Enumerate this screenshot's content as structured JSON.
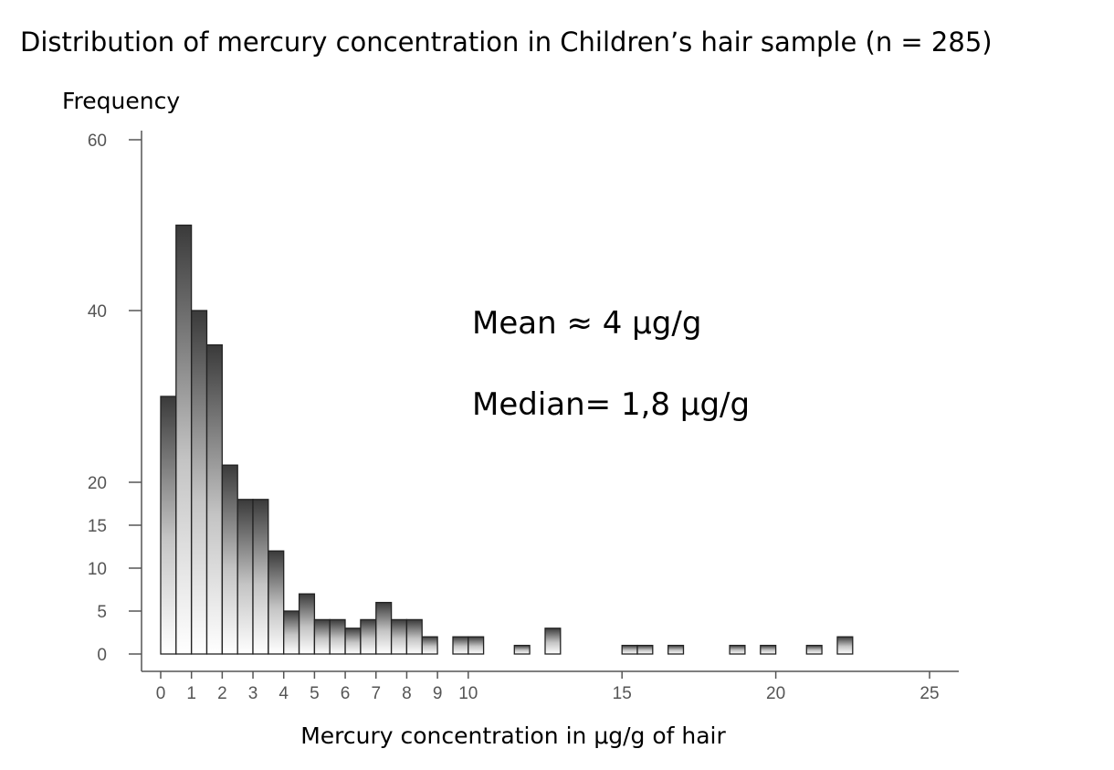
{
  "chart_data": {
    "type": "bar",
    "title": "Distribution of mercury concentration in Children’s hair sample (n = 285)",
    "xlabel": "Mercury concentration in μg/g of hair",
    "ylabel": "Frequency",
    "xlim": [
      0,
      25
    ],
    "ylim": [
      0,
      60
    ],
    "x_ticks": [
      "0",
      "1",
      "2",
      "3",
      "4",
      "5",
      "6",
      "7",
      "8",
      "9",
      "10",
      "15",
      "20",
      "25"
    ],
    "y_ticks": [
      "0",
      "5",
      "10",
      "15",
      "20",
      "40",
      "60"
    ],
    "bin_width": 0.5,
    "bins": [
      {
        "start": 0.0,
        "value": 30
      },
      {
        "start": 0.5,
        "value": 50
      },
      {
        "start": 1.0,
        "value": 40
      },
      {
        "start": 1.5,
        "value": 36
      },
      {
        "start": 2.0,
        "value": 22
      },
      {
        "start": 2.5,
        "value": 18
      },
      {
        "start": 3.0,
        "value": 18
      },
      {
        "start": 3.5,
        "value": 12
      },
      {
        "start": 4.0,
        "value": 5
      },
      {
        "start": 4.5,
        "value": 7
      },
      {
        "start": 5.0,
        "value": 4
      },
      {
        "start": 5.5,
        "value": 4
      },
      {
        "start": 6.0,
        "value": 3
      },
      {
        "start": 6.5,
        "value": 4
      },
      {
        "start": 7.0,
        "value": 6
      },
      {
        "start": 7.5,
        "value": 4
      },
      {
        "start": 8.0,
        "value": 4
      },
      {
        "start": 8.5,
        "value": 2
      },
      {
        "start": 9.5,
        "value": 2
      },
      {
        "start": 10.0,
        "value": 2
      },
      {
        "start": 11.5,
        "value": 1
      },
      {
        "start": 12.5,
        "value": 3
      },
      {
        "start": 15.0,
        "value": 1
      },
      {
        "start": 15.5,
        "value": 1
      },
      {
        "start": 16.5,
        "value": 1
      },
      {
        "start": 18.5,
        "value": 1
      },
      {
        "start": 19.5,
        "value": 1
      },
      {
        "start": 21.0,
        "value": 1
      },
      {
        "start": 22.0,
        "value": 2
      }
    ],
    "annotations": [
      "Mean ≈ 4 μg/g",
      "Median= 1,8 μg/g"
    ],
    "colors": {
      "bar_dark": "#3a3a3a",
      "bar_light": "#ffffff",
      "axis": "#555555"
    },
    "grid": false
  }
}
